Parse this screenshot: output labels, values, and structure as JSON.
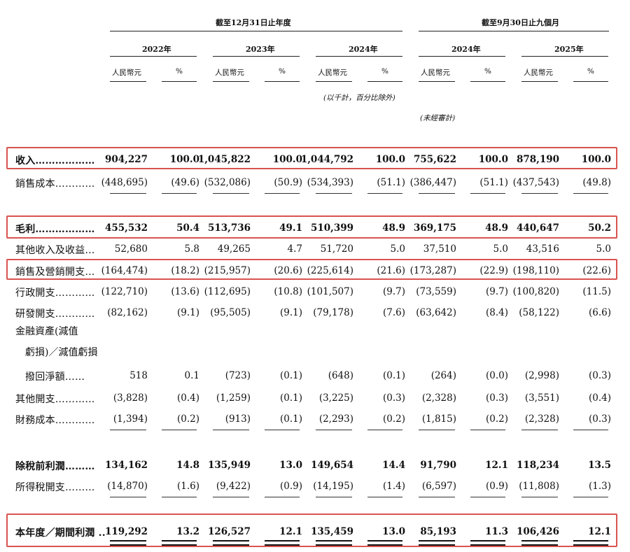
{
  "header": {
    "group_fy": "截至12月31日止年度",
    "group_9m": "截至9月30日止九個月",
    "years": [
      "2022年",
      "2023年",
      "2024年",
      "2024年",
      "2025年"
    ],
    "rmb": "人民幣元",
    "pct": "%",
    "note_thousands": "(以千計，百分比除外)",
    "note_unaudited": "(未經審計)"
  },
  "rows": [
    {
      "label": "收入………………",
      "bold": true,
      "values": [
        "904,227",
        "100.0",
        "1,045,822",
        "100.0",
        "1,044,792",
        "100.0",
        "755,622",
        "100.0",
        "878,190",
        "100.0"
      ]
    },
    {
      "label": "銷售成本…………",
      "bold": false,
      "values": [
        "(448,695)",
        "(49.6)",
        "(532,086)",
        "(50.9)",
        "(534,393)",
        "(51.1)",
        "(386,447)",
        "(51.1)",
        "(437,543)",
        "(49.8)"
      ]
    },
    {
      "label": "毛利………………",
      "bold": true,
      "values": [
        "455,532",
        "50.4",
        "513,736",
        "49.1",
        "510,399",
        "48.9",
        "369,175",
        "48.9",
        "440,647",
        "50.2"
      ]
    },
    {
      "label": "其他收入及收益…",
      "bold": false,
      "values": [
        "52,680",
        "5.8",
        "49,265",
        "4.7",
        "51,720",
        "5.0",
        "37,510",
        "5.0",
        "43,516",
        "5.0"
      ]
    },
    {
      "label": "銷售及營銷開支…",
      "bold": false,
      "values": [
        "(164,474)",
        "(18.2)",
        "(215,957)",
        "(20.6)",
        "(225,614)",
        "(21.6)",
        "(173,287)",
        "(22.9)",
        "(198,110)",
        "(22.6)"
      ]
    },
    {
      "label": "行政開支…………",
      "bold": false,
      "values": [
        "(122,710)",
        "(13.6)",
        "(112,695)",
        "(10.8)",
        "(101,507)",
        "(9.7)",
        "(73,559)",
        "(9.7)",
        "(100,820)",
        "(11.5)"
      ]
    },
    {
      "label": "研發開支…………",
      "bold": false,
      "values": [
        "(82,162)",
        "(9.1)",
        "(95,505)",
        "(9.1)",
        "(79,178)",
        "(7.6)",
        "(63,642)",
        "(8.4)",
        "(58,122)",
        "(6.6)"
      ]
    },
    {
      "label": "撥回淨額……",
      "bold": false,
      "values": [
        "518",
        "0.1",
        "(723)",
        "(0.1)",
        "(648)",
        "(0.1)",
        "(264)",
        "(0.0)",
        "(2,998)",
        "(0.3)"
      ]
    },
    {
      "label": "其他開支…………",
      "bold": false,
      "values": [
        "(3,828)",
        "(0.4)",
        "(1,259)",
        "(0.1)",
        "(3,225)",
        "(0.3)",
        "(2,328)",
        "(0.3)",
        "(3,551)",
        "(0.4)"
      ]
    },
    {
      "label": "財務成本…………",
      "bold": false,
      "values": [
        "(1,394)",
        "(0.2)",
        "(913)",
        "(0.1)",
        "(2,293)",
        "(0.2)",
        "(1,815)",
        "(0.2)",
        "(2,328)",
        "(0.3)"
      ]
    },
    {
      "label": "除稅前利潤………",
      "bold": true,
      "values": [
        "134,162",
        "14.8",
        "135,949",
        "13.0",
        "149,654",
        "14.4",
        "91,790",
        "12.1",
        "118,234",
        "13.5"
      ]
    },
    {
      "label": "所得稅開支………",
      "bold": false,
      "values": [
        "(14,870)",
        "(1.6)",
        "(9,422)",
        "(0.9)",
        "(14,195)",
        "(1.4)",
        "(6,597)",
        "(0.9)",
        "(11,808)",
        "(1.3)"
      ]
    },
    {
      "label": "本年度／期間利潤 ..",
      "bold": true,
      "values": [
        "119,292",
        "13.2",
        "126,527",
        "12.1",
        "135,459",
        "13.0",
        "85,193",
        "11.3",
        "106,426",
        "12.1"
      ]
    }
  ],
  "impairment_label": {
    "line1": "金融資產(減值",
    "line2": "虧損)／減值虧損"
  },
  "colors": {
    "highlight_box": "#d9534f",
    "text": "#111111"
  }
}
